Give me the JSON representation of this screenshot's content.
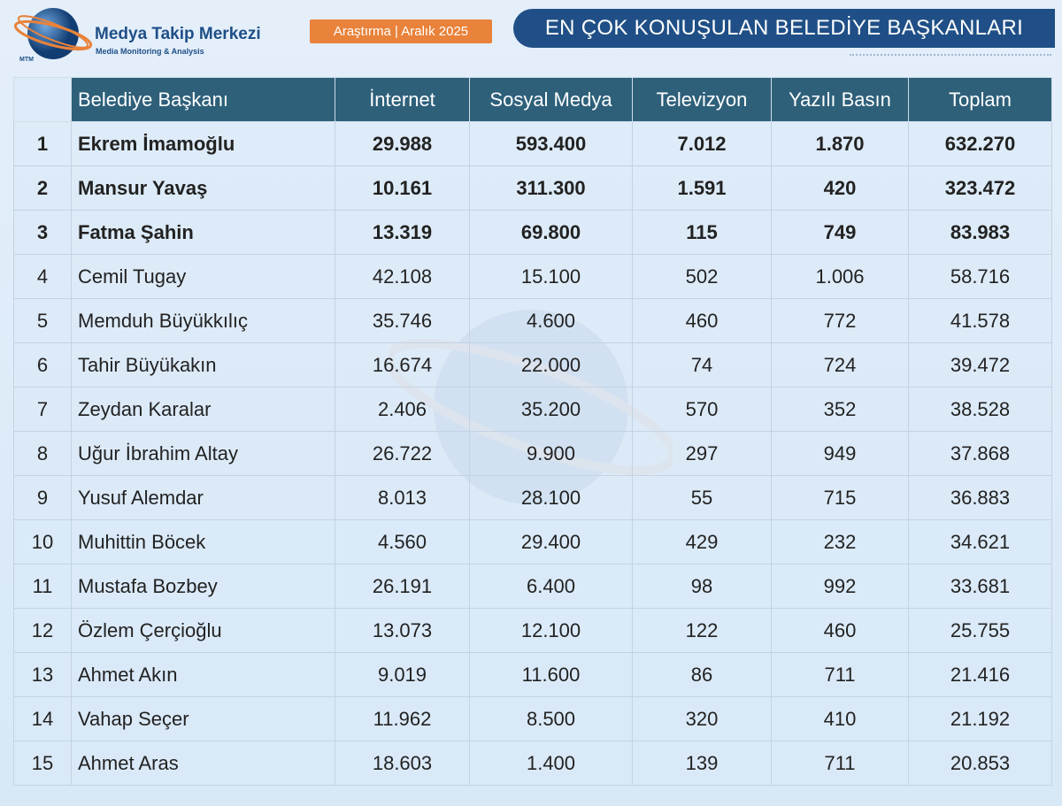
{
  "header": {
    "brand": "Medya Takip Merkezi",
    "brand_subtitle": "Media Monitoring & Analysis",
    "logo_text": "MTM",
    "badge": "Araştırma | Aralık 2025",
    "title": "EN ÇOK KONUŞULAN BELEDİYE BAŞKANLARI"
  },
  "table": {
    "columns": [
      "Belediye Başkanı",
      "İnternet",
      "Sosyal Medya",
      "Televizyon",
      "Yazılı Basın",
      "Toplam"
    ],
    "rows": [
      [
        "1",
        "Ekrem İmamoğlu",
        "29.988",
        "593.400",
        "7.012",
        "1.870",
        "632.270"
      ],
      [
        "2",
        "Mansur Yavaş",
        "10.161",
        "311.300",
        "1.591",
        "420",
        "323.472"
      ],
      [
        "3",
        "Fatma Şahin",
        "13.319",
        "69.800",
        "115",
        "749",
        "83.983"
      ],
      [
        "4",
        "Cemil Tugay",
        "42.108",
        "15.100",
        "502",
        "1.006",
        "58.716"
      ],
      [
        "5",
        "Memduh Büyükkılıç",
        "35.746",
        "4.600",
        "460",
        "772",
        "41.578"
      ],
      [
        "6",
        "Tahir Büyükakın",
        "16.674",
        "22.000",
        "74",
        "724",
        "39.472"
      ],
      [
        "7",
        "Zeydan Karalar",
        "2.406",
        "35.200",
        "570",
        "352",
        "38.528"
      ],
      [
        "8",
        "Uğur İbrahim Altay",
        "26.722",
        "9.900",
        "297",
        "949",
        "37.868"
      ],
      [
        "9",
        "Yusuf Alemdar",
        "8.013",
        "28.100",
        "55",
        "715",
        "36.883"
      ],
      [
        "10",
        "Muhittin Böcek",
        "4.560",
        "29.400",
        "429",
        "232",
        "34.621"
      ],
      [
        "11",
        "Mustafa Bozbey",
        "26.191",
        "6.400",
        "98",
        "992",
        "33.681"
      ],
      [
        "12",
        "Özlem Çerçioğlu",
        "13.073",
        "12.100",
        "122",
        "460",
        "25.755"
      ],
      [
        "13",
        "Ahmet Akın",
        "9.019",
        "11.600",
        "86",
        "711",
        "21.416"
      ],
      [
        "14",
        "Vahap Seçer",
        "11.962",
        "8.500",
        "320",
        "410",
        "21.192"
      ],
      [
        "15",
        "Ahmet Aras",
        "18.603",
        "1.400",
        "139",
        "711",
        "20.853"
      ]
    ]
  }
}
